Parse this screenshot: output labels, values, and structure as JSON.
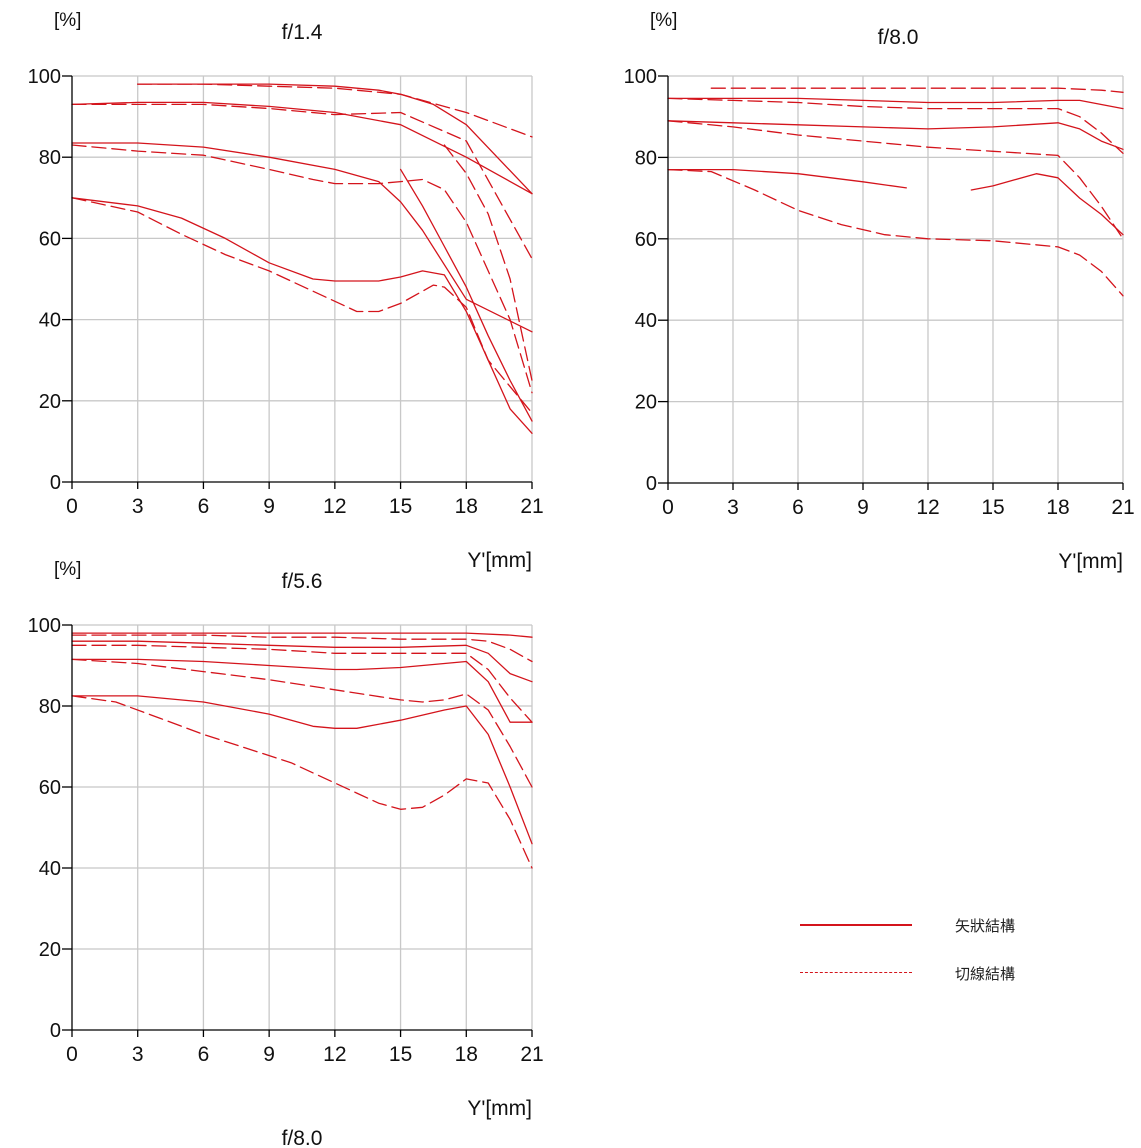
{
  "charts": [
    {
      "y_unit_label": "[%]",
      "title": "f/1.4",
      "x_unit_label": "Y'[mm]",
      "below_label": ""
    },
    {
      "y_unit_label": "[%]",
      "title": "f/8.0",
      "x_unit_label": "Y'[mm]",
      "below_label": ""
    },
    {
      "y_unit_label": "[%]",
      "title": "f/5.6",
      "x_unit_label": "Y'[mm]",
      "below_label": "f/8.0"
    }
  ],
  "legend": {
    "solid_label": "矢狀結構",
    "dashed_label": "切線結構"
  },
  "colors": {
    "line": "#d4141c",
    "axis": "#000000",
    "grid": "#c8c8c8"
  },
  "chart_data": [
    {
      "type": "line",
      "title": "f/1.4",
      "ylabel": "[%]",
      "xlabel": "Y'[mm]",
      "x_ticks": [
        0,
        3,
        6,
        9,
        12,
        15,
        18,
        21
      ],
      "y_ticks": [
        0,
        20,
        40,
        60,
        80,
        100
      ],
      "xlim": [
        0,
        21
      ],
      "ylim": [
        0,
        100
      ],
      "grid": true,
      "series": [
        {
          "style": "solid",
          "x": [
            0,
            3,
            6,
            9,
            12,
            15,
            18,
            21
          ],
          "y": [
            93,
            93.5,
            93.5,
            92.5,
            91,
            88,
            80,
            71
          ]
        },
        {
          "style": "dashed",
          "x": [
            3,
            6,
            9,
            12,
            15,
            18,
            21
          ],
          "y": [
            98,
            98,
            97.5,
            97,
            95.5,
            91,
            85
          ]
        },
        {
          "style": "dashed",
          "x": [
            0,
            3,
            6,
            9,
            12,
            15,
            18,
            21
          ],
          "y": [
            93,
            93,
            93,
            92,
            90.5,
            91,
            84,
            55
          ]
        },
        {
          "style": "solid",
          "x": [
            3,
            6,
            9,
            12,
            14,
            15,
            16.5,
            18,
            21
          ],
          "y": [
            98,
            98,
            98,
            97.5,
            96.5,
            95.5,
            93,
            88,
            71
          ]
        },
        {
          "style": "solid",
          "x": [
            0,
            3,
            6,
            9,
            12,
            14,
            15,
            16,
            18,
            21
          ],
          "y": [
            83.5,
            83.5,
            82.5,
            80,
            77,
            74,
            69,
            62,
            45,
            37
          ]
        },
        {
          "style": "dashed",
          "x": [
            0,
            3,
            6,
            9,
            11,
            12,
            14,
            15,
            16,
            17,
            18,
            20,
            21
          ],
          "y": [
            83,
            81.5,
            80.5,
            77,
            74.5,
            73.5,
            73.5,
            74,
            74.5,
            72,
            64,
            40,
            22
          ]
        },
        {
          "style": "solid",
          "x": [
            0,
            3,
            5,
            7,
            9,
            11,
            12,
            13,
            14,
            15,
            16,
            17,
            18,
            19,
            20,
            21
          ],
          "y": [
            70,
            68,
            65,
            60,
            54,
            50,
            49.5,
            49.5,
            49.5,
            50.5,
            52,
            51,
            42,
            30,
            18,
            12
          ]
        },
        {
          "style": "dashed",
          "x": [
            0,
            3,
            5,
            7,
            9,
            11,
            12,
            13,
            14,
            15,
            16,
            16.5,
            17,
            18,
            19,
            21
          ],
          "y": [
            70,
            66.5,
            61,
            56,
            52,
            47,
            44.5,
            42,
            42,
            44,
            47,
            48.5,
            48,
            43,
            30,
            17
          ]
        },
        {
          "style": "solid",
          "x": [
            15,
            16,
            17,
            18,
            19,
            20,
            21
          ],
          "y": [
            77,
            68,
            58,
            48,
            36,
            25,
            15
          ]
        },
        {
          "style": "dashed",
          "x": [
            17,
            18,
            19,
            20,
            21
          ],
          "y": [
            83,
            76,
            66,
            50,
            25
          ]
        }
      ]
    },
    {
      "type": "line",
      "title": "f/8.0",
      "ylabel": "[%]",
      "xlabel": "Y'[mm]",
      "x_ticks": [
        0,
        3,
        6,
        9,
        12,
        15,
        18,
        21
      ],
      "y_ticks": [
        0,
        20,
        40,
        60,
        80,
        100
      ],
      "xlim": [
        0,
        21
      ],
      "ylim": [
        0,
        100
      ],
      "grid": true,
      "series": [
        {
          "style": "dashed",
          "x": [
            2,
            5,
            8,
            12,
            16,
            18,
            20,
            21
          ],
          "y": [
            97,
            97,
            97,
            97,
            97,
            97,
            96.5,
            96
          ]
        },
        {
          "style": "solid",
          "x": [
            0,
            3,
            6,
            9,
            12,
            15,
            18,
            19,
            21
          ],
          "y": [
            94.5,
            94.5,
            94.5,
            94,
            93.5,
            93.5,
            94,
            94,
            92
          ]
        },
        {
          "style": "dashed",
          "x": [
            0,
            3,
            6,
            9,
            12,
            15,
            18,
            19,
            20,
            21
          ],
          "y": [
            94.5,
            94,
            93.5,
            92.5,
            92,
            92,
            92,
            90,
            86,
            81
          ]
        },
        {
          "style": "solid",
          "x": [
            0,
            3,
            6,
            9,
            12,
            15,
            18,
            19,
            20,
            21
          ],
          "y": [
            89,
            88.5,
            88,
            87.5,
            87,
            87.5,
            88.5,
            87,
            84,
            82
          ]
        },
        {
          "style": "dashed",
          "x": [
            0,
            3,
            6,
            9,
            12,
            15,
            18,
            19,
            20,
            21
          ],
          "y": [
            89,
            87.5,
            85.5,
            84,
            82.5,
            81.5,
            80.5,
            75,
            68,
            60
          ]
        },
        {
          "style": "solid",
          "x": [
            0,
            3,
            6,
            9,
            11
          ],
          "y": [
            77,
            77,
            76,
            74,
            72.5
          ]
        },
        {
          "style": "solid",
          "x": [
            14,
            15,
            16,
            17,
            18,
            19,
            20,
            21
          ],
          "y": [
            72,
            73,
            74.5,
            76,
            75,
            70,
            66,
            61
          ]
        },
        {
          "style": "dashed",
          "x": [
            0,
            2,
            4,
            6,
            8,
            10,
            12,
            15,
            18,
            19,
            20,
            21
          ],
          "y": [
            77,
            76.5,
            72,
            67,
            63.5,
            61,
            60,
            59.5,
            58,
            56,
            52,
            46
          ]
        }
      ]
    },
    {
      "type": "line",
      "title": "f/5.6",
      "ylabel": "[%]",
      "xlabel": "Y'[mm]",
      "x_ticks": [
        0,
        3,
        6,
        9,
        12,
        15,
        18,
        21
      ],
      "y_ticks": [
        0,
        20,
        40,
        60,
        80,
        100
      ],
      "xlim": [
        0,
        21
      ],
      "ylim": [
        0,
        100
      ],
      "grid": true,
      "series": [
        {
          "style": "solid",
          "x": [
            0,
            3,
            6,
            9,
            12,
            15,
            18,
            20,
            21
          ],
          "y": [
            98,
            98,
            98,
            98,
            98,
            98,
            98,
            97.5,
            97
          ]
        },
        {
          "style": "dashed",
          "x": [
            0,
            3,
            6,
            9,
            12,
            15,
            18,
            19,
            20,
            21
          ],
          "y": [
            97.5,
            97.5,
            97.5,
            97,
            97,
            96.5,
            96.5,
            96,
            94,
            91
          ]
        },
        {
          "style": "solid",
          "x": [
            0,
            3,
            6,
            9,
            12,
            15,
            18,
            19,
            20,
            21
          ],
          "y": [
            96,
            96,
            95.5,
            95,
            94.5,
            94.5,
            95,
            93,
            88,
            86
          ]
        },
        {
          "style": "dashed",
          "x": [
            0,
            3,
            6,
            9,
            12,
            15,
            18,
            19,
            20,
            21
          ],
          "y": [
            95,
            95,
            94.5,
            94,
            93,
            93,
            93,
            89,
            82,
            76
          ]
        },
        {
          "style": "solid",
          "x": [
            0,
            3,
            6,
            9,
            12,
            13,
            15,
            18,
            19,
            20,
            21
          ],
          "y": [
            91.5,
            91.5,
            91,
            90,
            89,
            89,
            89.5,
            91,
            86,
            76,
            76
          ]
        },
        {
          "style": "dashed",
          "x": [
            0,
            3,
            6,
            9,
            12,
            15,
            16,
            17,
            18,
            19,
            20,
            21
          ],
          "y": [
            91.5,
            90.5,
            88.5,
            86.5,
            84,
            81.5,
            81,
            81.5,
            83,
            79,
            70,
            60
          ]
        },
        {
          "style": "solid",
          "x": [
            0,
            3,
            6,
            9,
            11,
            12,
            13,
            15,
            17,
            18,
            19,
            20,
            21
          ],
          "y": [
            82.5,
            82.5,
            81,
            78,
            75,
            74.5,
            74.5,
            76.5,
            79,
            80,
            73,
            60,
            46
          ]
        },
        {
          "style": "dashed",
          "x": [
            0,
            2,
            4,
            6,
            8,
            10,
            12,
            13,
            14,
            15,
            16,
            17,
            18,
            19,
            20,
            21
          ],
          "y": [
            82.5,
            81,
            77,
            73,
            69.5,
            66,
            61,
            58.5,
            56,
            54.5,
            55,
            58,
            62,
            61,
            52,
            40
          ]
        }
      ]
    }
  ]
}
